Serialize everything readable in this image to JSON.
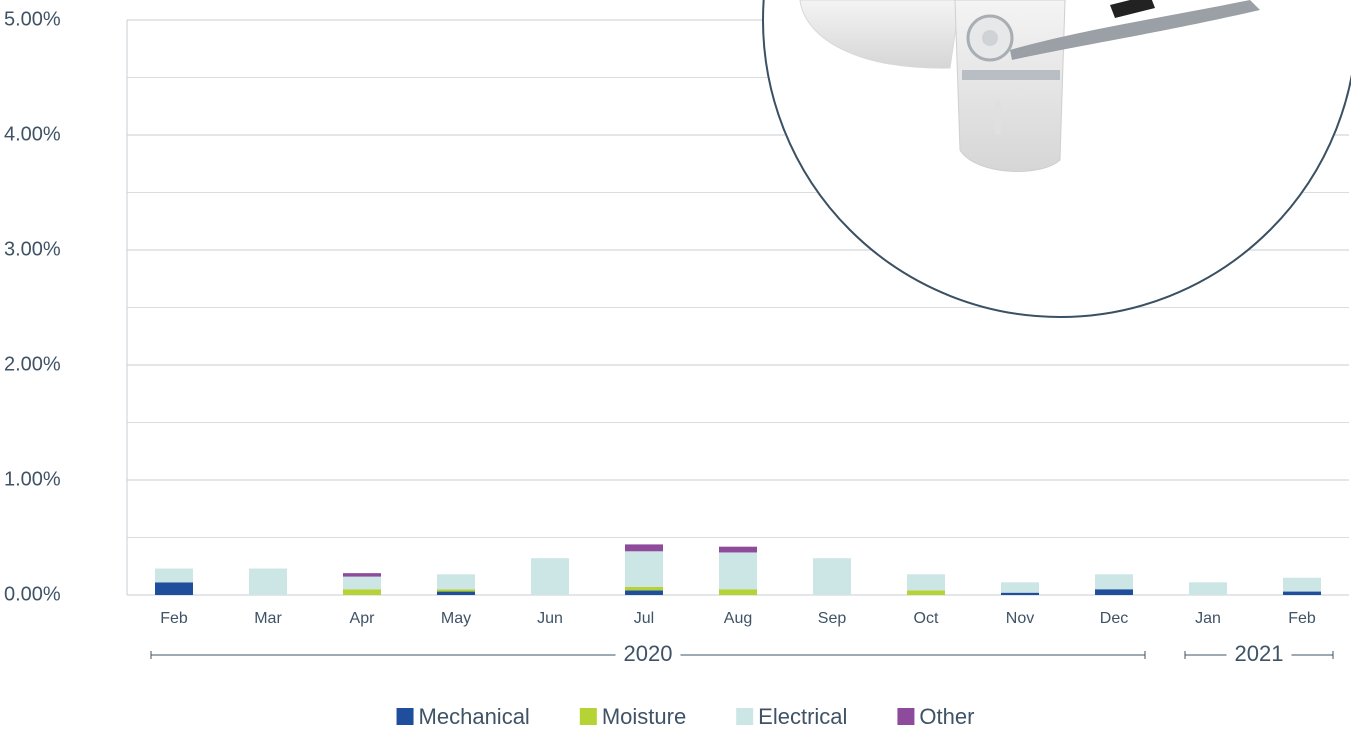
{
  "chart_data": {
    "type": "stacked-bar",
    "categories": [
      "Feb",
      "Mar",
      "Apr",
      "May",
      "Jun",
      "Jul",
      "Aug",
      "Sep",
      "Oct",
      "Nov",
      "Dec",
      "Jan",
      "Feb"
    ],
    "x_groups": [
      {
        "label": "2020",
        "count": 11
      },
      {
        "label": "2021",
        "count": 2
      }
    ],
    "series": [
      {
        "name": "Mechanical",
        "color": "#1f4e9c",
        "values": [
          0.11,
          0,
          0,
          0.03,
          0,
          0.04,
          0,
          0,
          0,
          0.02,
          0.05,
          0,
          0.03
        ]
      },
      {
        "name": "Moisture",
        "color": "#b5d334",
        "values": [
          0,
          0,
          0.05,
          0.02,
          0,
          0.03,
          0.05,
          0,
          0.04,
          0,
          0,
          0,
          0
        ]
      },
      {
        "name": "Electrical",
        "color": "#cce5e5",
        "values": [
          0.12,
          0.23,
          0.11,
          0.13,
          0.32,
          0.31,
          0.32,
          0.32,
          0.14,
          0.09,
          0.13,
          0.11,
          0.12
        ]
      },
      {
        "name": "Other",
        "color": "#8e4b9c",
        "values": [
          0,
          0,
          0.03,
          0,
          0,
          0.06,
          0.05,
          0,
          0,
          0,
          0,
          0,
          0
        ]
      }
    ],
    "ylim": [
      0,
      5
    ],
    "yticks": [
      {
        "value": 0,
        "label": "0.00%"
      },
      {
        "value": 1,
        "label": "1.00%"
      },
      {
        "value": 2,
        "label": "2.00%"
      },
      {
        "value": 3,
        "label": "3.00%"
      },
      {
        "value": 4,
        "label": "4.00%"
      },
      {
        "value": 5,
        "label": "5.00%"
      }
    ],
    "minor_yticks": [
      0.5,
      1.5,
      2.5,
      3.5,
      4.5
    ],
    "grid": true,
    "legend": "bottom"
  }
}
